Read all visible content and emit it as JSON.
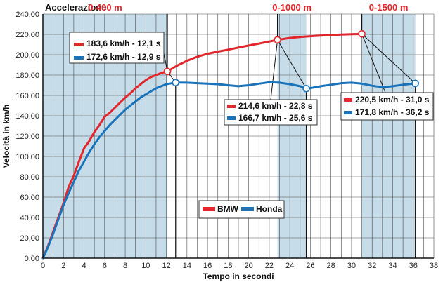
{
  "chart_data": {
    "type": "line",
    "title": "Accelerazione",
    "xlabel": "Tempo in secondi",
    "ylabel": "Velocità in km/h",
    "xlim": [
      0,
      38
    ],
    "ylim": [
      0,
      240
    ],
    "x_ticks": [
      "0",
      "2",
      "4",
      "6",
      "8",
      "10",
      "12",
      "14",
      "16",
      "18",
      "20",
      "22",
      "24",
      "26",
      "28",
      "30",
      "32",
      "34",
      "36",
      "38"
    ],
    "y_ticks": [
      "0,00",
      "20,00",
      "40,00",
      "60,00",
      "80,00",
      "100,00",
      "120,00",
      "140,00",
      "160,00",
      "180,00",
      "200,00",
      "220,00",
      "240,00"
    ],
    "grid": true,
    "shaded_zones": [
      {
        "label": "0-400 m",
        "x_start": 0,
        "x_end": 12.1
      },
      {
        "label": "0-1000 m",
        "x_start": 22.8,
        "x_end": 25.6
      },
      {
        "label": "0-1500 m",
        "x_start": 31.0,
        "x_end": 36.2
      }
    ],
    "series": [
      {
        "name": "BMW",
        "color": "#e2262b",
        "x": [
          0,
          0.5,
          1,
          1.5,
          2,
          2.5,
          3,
          3.5,
          4,
          4.5,
          5,
          5.5,
          6,
          6.5,
          7,
          7.5,
          8,
          8.5,
          9,
          9.5,
          10,
          10.5,
          11,
          11.5,
          12.1,
          13,
          14,
          15,
          16,
          17,
          18,
          19,
          20,
          21,
          22,
          22.8,
          24,
          25,
          26,
          27,
          28,
          29,
          30,
          31.0
        ],
        "values": [
          0,
          12,
          26,
          40,
          54,
          70,
          81,
          95,
          108,
          115,
          124,
          131,
          139,
          143,
          148,
          153,
          158,
          162,
          167,
          171,
          175,
          178,
          180,
          182,
          183.6,
          189,
          194,
          198,
          201,
          203,
          205,
          207,
          209,
          211,
          213,
          214.6,
          216.5,
          217.5,
          218.2,
          218.8,
          219.3,
          219.8,
          220.2,
          220.5
        ]
      },
      {
        "name": "Honda",
        "color": "#1873bb",
        "x": [
          0,
          0.5,
          1,
          1.5,
          2,
          2.5,
          3,
          3.5,
          4,
          4.5,
          5,
          5.5,
          6,
          6.5,
          7,
          7.5,
          8,
          8.5,
          9,
          9.5,
          10,
          10.5,
          11,
          11.5,
          12,
          12.9,
          14,
          15,
          16,
          17,
          18,
          19,
          20,
          21,
          22,
          23,
          24,
          25,
          25.6,
          26.5,
          27,
          28,
          29,
          30,
          31,
          32,
          33,
          34,
          35,
          36.2
        ],
        "values": [
          0,
          11,
          24,
          38,
          52,
          64,
          75,
          86,
          95,
          104,
          112,
          119,
          125,
          131,
          136,
          141,
          146,
          150,
          154,
          158,
          161,
          164,
          167,
          169,
          171,
          172.6,
          172.5,
          172,
          171.5,
          171,
          170,
          169,
          170,
          171.5,
          173,
          172.5,
          171,
          169,
          166.7,
          168,
          169,
          170.5,
          172,
          172.5,
          171.5,
          169.5,
          168,
          169,
          170.5,
          171.8
        ]
      }
    ],
    "markers": [
      {
        "series": "BMW",
        "x": 12.1,
        "y": 183.6
      },
      {
        "series": "Honda",
        "x": 12.9,
        "y": 172.6
      },
      {
        "series": "BMW",
        "x": 22.8,
        "y": 214.6
      },
      {
        "series": "Honda",
        "x": 25.6,
        "y": 166.7
      },
      {
        "series": "BMW",
        "x": 31.0,
        "y": 220.5
      },
      {
        "series": "Honda",
        "x": 36.2,
        "y": 171.8
      }
    ],
    "annotations": [
      {
        "lines": [
          "183,6 km/h - 12,1 s",
          "172,6 km/h - 12,9 s"
        ],
        "series_colors": [
          "#e2262b",
          "#1873bb"
        ],
        "placement": "left-upper"
      },
      {
        "lines": [
          "214,6 km/h - 22,8 s",
          "166,7 km/h - 25,6 s"
        ],
        "series_colors": [
          "#e2262b",
          "#1873bb"
        ],
        "placement": "center"
      },
      {
        "lines": [
          "220,5 km/h - 31,0 s",
          "171,8 km/h - 36,2 s"
        ],
        "series_colors": [
          "#e2262b",
          "#1873bb"
        ],
        "placement": "right"
      }
    ],
    "legend": [
      {
        "label": "BMW",
        "color": "#e2262b"
      },
      {
        "label": "Honda",
        "color": "#1873bb"
      }
    ],
    "legend_position": "bottom-center"
  }
}
